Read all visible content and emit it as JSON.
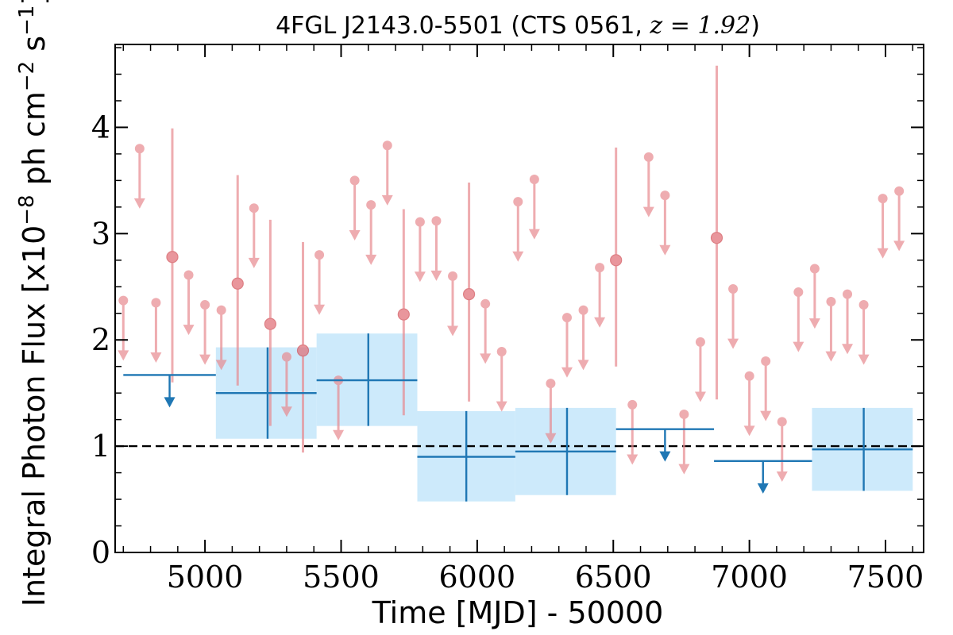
{
  "chart_data": {
    "type": "scatter",
    "title_main": "4FGL J2143.0-5501 (CTS 0561, ",
    "title_z": "z = 1.92",
    "title_close": ")",
    "xlabel": "Time [MJD] - 50000",
    "ylabel_main": "Integral Photon Flux [x10",
    "ylabel_exp1": "−8",
    "ylabel_mid": " ph cm",
    "ylabel_exp2": "−2",
    "ylabel_unit": " s",
    "ylabel_exp3": "−1",
    "ylabel_close": "]",
    "xlim": [
      4670,
      7640
    ],
    "ylim": [
      0,
      4.78
    ],
    "x_ticks": [
      5000,
      5500,
      6000,
      6500,
      7000,
      7500
    ],
    "y_ticks": [
      0,
      1,
      2,
      3,
      4
    ],
    "x_minor_step": 100,
    "y_minor_step": 0.25,
    "reference_line": {
      "y": 1.0,
      "style": "dashed",
      "color": "#000000"
    },
    "colors": {
      "fine": "#e88a8f",
      "coarse": "#1f77b4",
      "band": "#cdeafb"
    },
    "series": [
      {
        "binning": "fine",
        "points": [
          {
            "x": 4700,
            "y": 2.37,
            "ul": true
          },
          {
            "x": 4760,
            "y": 3.8,
            "ul": true
          },
          {
            "x": 4820,
            "y": 2.35,
            "ul": true
          },
          {
            "x": 4880,
            "y": 2.78,
            "yerr_lo": 1.18,
            "yerr_hi": 1.21
          },
          {
            "x": 4940,
            "y": 2.61,
            "ul": true
          },
          {
            "x": 5000,
            "y": 2.33,
            "ul": true
          },
          {
            "x": 5060,
            "y": 2.28,
            "ul": true
          },
          {
            "x": 5120,
            "y": 2.53,
            "yerr_lo": 0.96,
            "yerr_hi": 1.02
          },
          {
            "x": 5180,
            "y": 3.24,
            "ul": true
          },
          {
            "x": 5240,
            "y": 2.15,
            "yerr_lo": 0.96,
            "yerr_hi": 0.98
          },
          {
            "x": 5300,
            "y": 1.84,
            "ul": true
          },
          {
            "x": 5360,
            "y": 1.9,
            "yerr_lo": 0.96,
            "yerr_hi": 1.02
          },
          {
            "x": 5420,
            "y": 2.8,
            "ul": true
          },
          {
            "x": 5490,
            "y": 1.62,
            "ul": true
          },
          {
            "x": 5550,
            "y": 3.5,
            "ul": true
          },
          {
            "x": 5610,
            "y": 3.27,
            "ul": true
          },
          {
            "x": 5670,
            "y": 3.83,
            "ul": true
          },
          {
            "x": 5730,
            "y": 2.24,
            "yerr_lo": 0.95,
            "yerr_hi": 0.99
          },
          {
            "x": 5790,
            "y": 3.11,
            "ul": true
          },
          {
            "x": 5850,
            "y": 3.12,
            "ul": true
          },
          {
            "x": 5910,
            "y": 2.6,
            "ul": true
          },
          {
            "x": 5970,
            "y": 2.43,
            "yerr_lo": 1.01,
            "yerr_hi": 1.05
          },
          {
            "x": 6030,
            "y": 2.34,
            "ul": true
          },
          {
            "x": 6090,
            "y": 1.89,
            "ul": true
          },
          {
            "x": 6150,
            "y": 3.3,
            "ul": true
          },
          {
            "x": 6210,
            "y": 3.51,
            "ul": true
          },
          {
            "x": 6270,
            "y": 1.59,
            "ul": true
          },
          {
            "x": 6330,
            "y": 2.21,
            "ul": true
          },
          {
            "x": 6390,
            "y": 2.28,
            "ul": true
          },
          {
            "x": 6450,
            "y": 2.68,
            "ul": true
          },
          {
            "x": 6510,
            "y": 2.75,
            "yerr_lo": 1.0,
            "yerr_hi": 1.06
          },
          {
            "x": 6570,
            "y": 1.39,
            "ul": true
          },
          {
            "x": 6630,
            "y": 3.72,
            "ul": true
          },
          {
            "x": 6690,
            "y": 3.36,
            "ul": true
          },
          {
            "x": 6760,
            "y": 1.3,
            "ul": true
          },
          {
            "x": 6820,
            "y": 1.98,
            "ul": true
          },
          {
            "x": 6880,
            "y": 2.96,
            "yerr_lo": 1.52,
            "yerr_hi": 1.62
          },
          {
            "x": 6940,
            "y": 2.48,
            "ul": true
          },
          {
            "x": 7000,
            "y": 1.66,
            "ul": true
          },
          {
            "x": 7060,
            "y": 1.8,
            "ul": true
          },
          {
            "x": 7120,
            "y": 1.23,
            "ul": true
          },
          {
            "x": 7180,
            "y": 2.45,
            "ul": true
          },
          {
            "x": 7240,
            "y": 2.67,
            "ul": true
          },
          {
            "x": 7300,
            "y": 2.36,
            "ul": true
          },
          {
            "x": 7360,
            "y": 2.43,
            "ul": true
          },
          {
            "x": 7420,
            "y": 2.33,
            "ul": true
          },
          {
            "x": 7490,
            "y": 3.33,
            "ul": true
          },
          {
            "x": 7550,
            "y": 3.4,
            "ul": true
          }
        ]
      },
      {
        "binning": "coarse",
        "points": [
          {
            "x": 4870,
            "x_lo": 4700,
            "x_hi": 5040,
            "y": 1.67,
            "ul": true
          },
          {
            "x": 5230,
            "x_lo": 5040,
            "x_hi": 5410,
            "y": 1.5,
            "yerr_lo": 0.43,
            "yerr_hi": 0.43
          },
          {
            "x": 5600,
            "x_lo": 5410,
            "x_hi": 5780,
            "y": 1.62,
            "yerr_lo": 0.43,
            "yerr_hi": 0.44
          },
          {
            "x": 5960,
            "x_lo": 5780,
            "x_hi": 6140,
            "y": 0.9,
            "yerr_lo": 0.42,
            "yerr_hi": 0.43
          },
          {
            "x": 6330,
            "x_lo": 6140,
            "x_hi": 6510,
            "y": 0.95,
            "yerr_lo": 0.41,
            "yerr_hi": 0.41
          },
          {
            "x": 6690,
            "x_lo": 6510,
            "x_hi": 6870,
            "y": 1.16,
            "ul": true
          },
          {
            "x": 7050,
            "x_lo": 6870,
            "x_hi": 7230,
            "y": 0.86,
            "ul": true
          },
          {
            "x": 7420,
            "x_lo": 7230,
            "x_hi": 7600,
            "y": 0.97,
            "yerr_lo": 0.39,
            "yerr_hi": 0.39
          }
        ]
      }
    ]
  }
}
